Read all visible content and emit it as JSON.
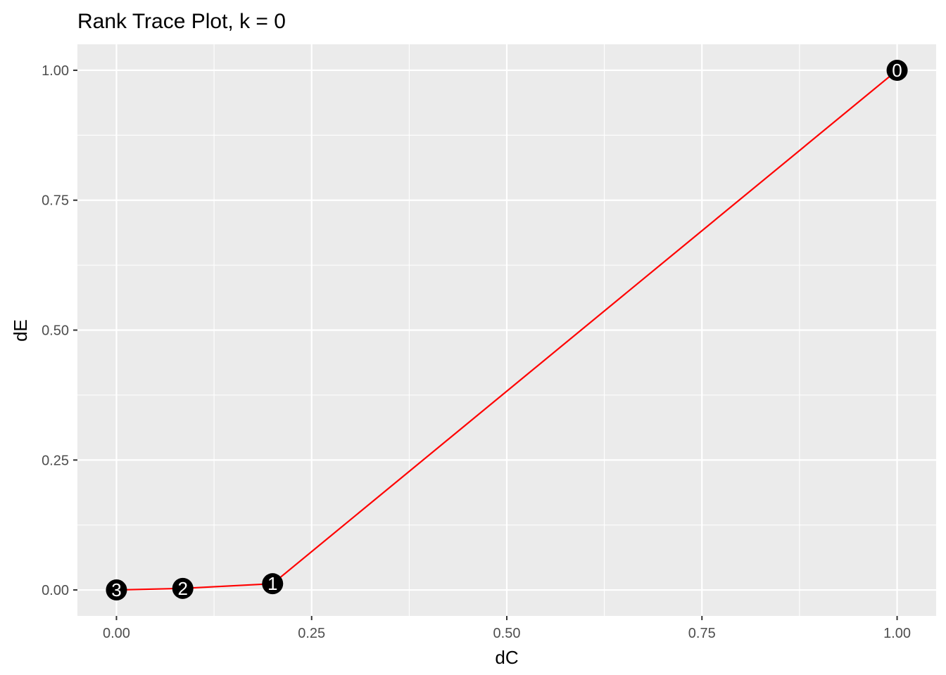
{
  "chart_data": {
    "type": "line",
    "title": "Rank Trace Plot, k =  0",
    "xlabel": "dC",
    "ylabel": "dE",
    "xlim": [
      -0.05,
      1.05
    ],
    "ylim": [
      -0.05,
      1.05
    ],
    "x_ticks": [
      0.0,
      0.25,
      0.5,
      0.75,
      1.0
    ],
    "x_tick_labels": [
      "0.00",
      "0.25",
      "0.50",
      "0.75",
      "1.00"
    ],
    "y_ticks": [
      0.0,
      0.25,
      0.5,
      0.75,
      1.0
    ],
    "y_tick_labels": [
      "0.00",
      "0.25",
      "0.50",
      "0.75",
      "1.00"
    ],
    "grid": true,
    "series": [
      {
        "points": [
          {
            "label": "0",
            "x": 1.0,
            "y": 1.0
          },
          {
            "label": "1",
            "x": 0.2,
            "y": 0.012
          },
          {
            "label": "2",
            "x": 0.085,
            "y": 0.003
          },
          {
            "label": "3",
            "x": 0.0,
            "y": 0.0
          }
        ]
      }
    ],
    "colors": {
      "line": "#ff0000",
      "marker": "#000000",
      "marker_text": "#ffffff",
      "panel": "#ebebeb",
      "grid": "#ffffff"
    }
  }
}
